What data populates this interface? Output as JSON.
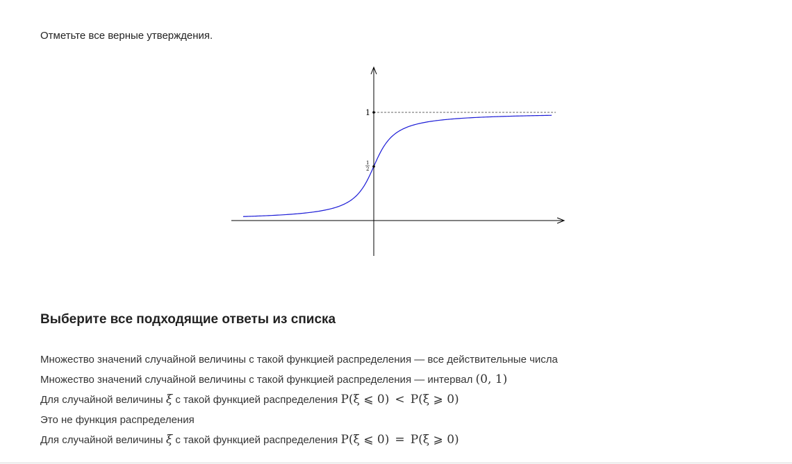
{
  "question": {
    "text": "Отметьте все верные утверждения."
  },
  "figure": {
    "tick_one": "1",
    "tick_half_num": "1",
    "tick_half_den": "2",
    "curve_color": "#1a1ad6",
    "asymptote_color": "#666666",
    "axis_color": "#000000"
  },
  "answers": {
    "title": "Выберите все подходящие ответы из списка",
    "options": [
      {
        "text": "Множество значений случайной величины с такой функцией распределения — все действительные числа"
      },
      {
        "text": "Множество значений случайной величины с такой функцией распределения — интервал ",
        "math": "(0, 1)"
      },
      {
        "pre": "Для случайной величины ",
        "xi": "ξ",
        "mid": " с такой функцией распределения ",
        "lhs": "P(ξ ⩽ 0)",
        "op": "<",
        "rhs": "P(ξ ⩾ 0)"
      },
      {
        "text": "Это не функция распределения"
      },
      {
        "pre": "Для случайной величины ",
        "xi": "ξ",
        "mid": " с такой функцией распределения ",
        "lhs": "P(ξ ⩽ 0)",
        "op": "=",
        "rhs": "P(ξ ⩾ 0)"
      }
    ]
  }
}
